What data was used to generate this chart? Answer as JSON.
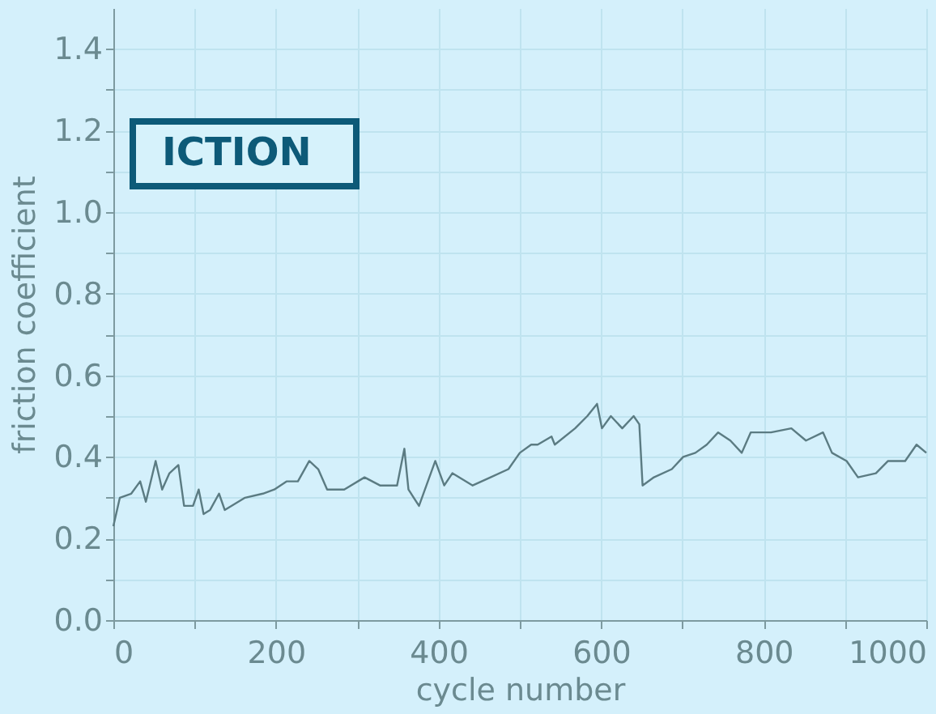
{
  "chart_data": {
    "type": "line",
    "xlabel": "cycle number",
    "ylabel": "friction coefficient",
    "annotations": [
      "ICTION"
    ],
    "x": [
      0,
      8,
      22,
      33,
      40,
      52,
      60,
      69,
      80,
      87,
      98,
      105,
      111,
      119,
      130,
      137,
      162,
      184,
      198,
      213,
      227,
      241,
      252,
      263,
      284,
      309,
      328,
      349,
      358,
      363,
      376,
      396,
      407,
      417,
      442,
      464,
      486,
      500,
      514,
      522,
      539,
      543,
      568,
      583,
      595,
      601,
      612,
      626,
      640,
      647,
      651,
      665,
      687,
      701,
      716,
      730,
      744,
      759,
      773,
      784,
      809,
      834,
      852,
      873,
      884,
      902,
      916,
      938,
      953,
      974,
      988,
      1000
    ],
    "series": [
      {
        "color": "#5b7b82",
        "values": [
          0.23,
          0.3,
          0.31,
          0.34,
          0.29,
          0.39,
          0.32,
          0.36,
          0.38,
          0.28,
          0.28,
          0.32,
          0.26,
          0.27,
          0.31,
          0.27,
          0.3,
          0.31,
          0.32,
          0.34,
          0.34,
          0.39,
          0.37,
          0.32,
          0.32,
          0.35,
          0.33,
          0.33,
          0.42,
          0.32,
          0.28,
          0.39,
          0.33,
          0.36,
          0.33,
          0.35,
          0.37,
          0.41,
          0.43,
          0.43,
          0.45,
          0.43,
          0.47,
          0.5,
          0.53,
          0.47,
          0.5,
          0.47,
          0.5,
          0.48,
          0.33,
          0.35,
          0.37,
          0.4,
          0.41,
          0.43,
          0.46,
          0.44,
          0.41,
          0.46,
          0.46,
          0.47,
          0.44,
          0.46,
          0.41,
          0.39,
          0.35,
          0.36,
          0.39,
          0.39,
          0.43,
          0.41
        ]
      }
    ],
    "xlim": [
      0,
      1000
    ],
    "ylim": [
      0,
      1.5
    ],
    "xticks": [
      0,
      {
        "value": 100,
        "label": null
      },
      200,
      {
        "value": 300,
        "label": null
      },
      400,
      {
        "value": 500,
        "label": null
      },
      600,
      {
        "value": 700,
        "label": null
      },
      800,
      {
        "value": 900,
        "label": null
      },
      1000
    ],
    "yticks": [
      {
        "value": 0,
        "label": "0.0"
      },
      {
        "value": 0.1,
        "label": null
      },
      {
        "value": 0.2,
        "label": "0.2"
      },
      {
        "value": 0.3,
        "label": null
      },
      {
        "value": 0.4,
        "label": "0.4"
      },
      {
        "value": 0.5,
        "label": null
      },
      {
        "value": 0.6,
        "label": "0.6"
      },
      {
        "value": 0.7,
        "label": null
      },
      {
        "value": 0.8,
        "label": "0.8"
      },
      {
        "value": 0.9,
        "label": null
      },
      {
        "value": 1.0,
        "label": "1.0"
      },
      {
        "value": 1.1,
        "label": null
      },
      {
        "value": 1.2,
        "label": "1.2"
      },
      {
        "value": 1.3,
        "label": null
      },
      {
        "value": 1.4,
        "label": "1.4"
      }
    ],
    "grid": true,
    "marker": "none",
    "line_style": "solid"
  }
}
